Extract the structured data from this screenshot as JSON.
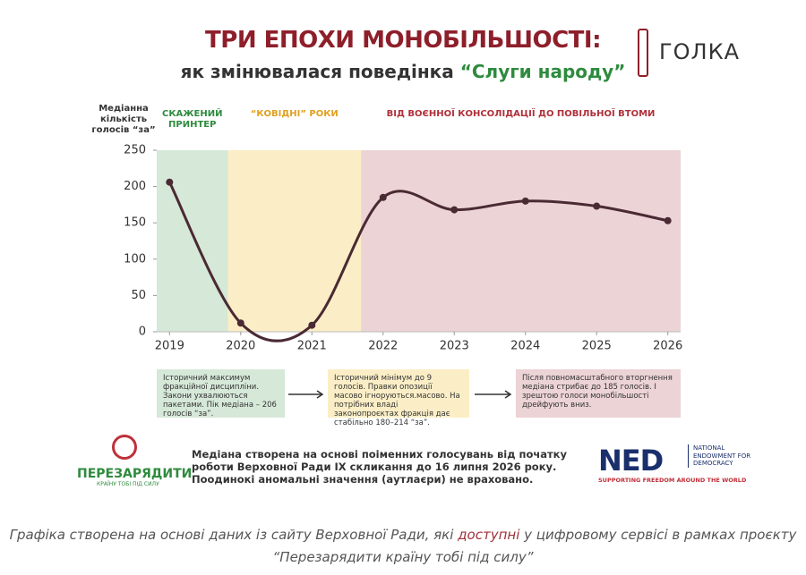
{
  "chart_data": {
    "type": "line",
    "title": "ТРИ ЕПОХИ МОНОБІЛЬШОСТІ:",
    "subtitle": "як змінювалася поведінка",
    "subtitle_highlight": "“Слуги народу”",
    "y_label": "Медіанна кількість голосів “за”",
    "x": [
      2019,
      2020,
      2021,
      2022,
      2023,
      2024,
      2025,
      2026
    ],
    "series": [
      {
        "color": "#4a2a33",
        "values": [
          206,
          12,
          9,
          185,
          168,
          180,
          173,
          153
        ]
      }
    ],
    "xlim": [
      2018.82,
      2026.18
    ],
    "xticks": [
      2019,
      2020,
      2021,
      2022,
      2023,
      2024,
      2025,
      2026
    ],
    "ylim": [
      0,
      250
    ],
    "yticks": [
      0,
      50,
      100,
      150,
      200,
      250
    ],
    "periods": [
      {
        "label": "СКАЖЕНИЙ ПРИНТЕР",
        "start": 2018.82,
        "end": 2019.82,
        "color": "#d6e8d8",
        "label_color": "#2e8b3e"
      },
      {
        "label": "“КОВІДНІ” РОКИ",
        "start": 2019.82,
        "end": 2021.69,
        "color": "#fbeec6",
        "label_color": "#e0a020"
      },
      {
        "label": "ВІД ВОЄННОЇ КОНСОЛІДАЦІЇ ДО ПОВІЛЬНОЇ ВТОМИ",
        "start": 2021.69,
        "end": 2026.18,
        "color": "#ecd3d6",
        "label_color": "#b0303a"
      }
    ],
    "notes": [
      "Історичний максимум фракційної дисципліни. Закони ухвалюються пакетами. Пік медіана – 206 голосів “за”.",
      "Історичний мінімум до 9 голосів. Правки опозиції масово ігноруються.масово. На потрібних владі законопроєктах фракція дає стабільно 180–214 “за”.",
      "Після повномасштабного вторгнення медіана стрибає до 185 голосів. І зрештою голоси монобільшості дрейфують вниз."
    ]
  },
  "footnote": "Медіана створена на основі поіменних голосувань від початку роботи Верховної Ради IX скликання до 16 липня 2026 року. Поодинокі аномальні значення (аутлаєри) не враховано.",
  "logos": {
    "publisher": "ГОЛКА",
    "partner": "ПЕРЕЗАРЯДИТИ",
    "partner_tagline": "КРАЇНУ ТОБІ ПІД СИЛУ",
    "sponsor": "NED",
    "sponsor_name": "NATIONAL ENDOWMENT FOR DEMOCRACY",
    "sponsor_tagline": "SUPPORTING FREEDOM AROUND THE WORLD"
  },
  "caption": {
    "before": "Графіка створена на основі даних із сайту Верховної Ради, які ",
    "link": "доступні",
    "after": " у цифровому сервісі в рамках проєкту “Перезарядити країну тобі під силу”"
  }
}
